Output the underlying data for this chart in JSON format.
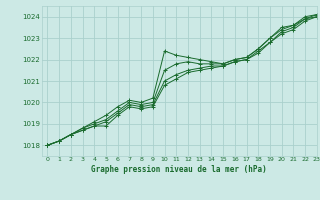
{
  "title": "Graphe pression niveau de la mer (hPa)",
  "xlim": [
    -0.5,
    23
  ],
  "ylim": [
    1017.5,
    1024.5
  ],
  "yticks": [
    1018,
    1019,
    1020,
    1021,
    1022,
    1023,
    1024
  ],
  "xticks": [
    0,
    1,
    2,
    3,
    4,
    5,
    6,
    7,
    8,
    9,
    10,
    11,
    12,
    13,
    14,
    15,
    16,
    17,
    18,
    19,
    20,
    21,
    22,
    23
  ],
  "bg_color": "#cce9e5",
  "grid_color": "#aad0cc",
  "line_color": "#1a6b2e",
  "series": [
    [
      1018.0,
      1018.2,
      1018.5,
      1018.8,
      1019.1,
      1019.4,
      1019.8,
      1020.1,
      1020.0,
      1020.2,
      1022.4,
      1022.2,
      1022.1,
      1022.0,
      1021.9,
      1021.8,
      1022.0,
      1022.1,
      1022.5,
      1023.0,
      1023.5,
      1023.6,
      1024.0,
      1024.1
    ],
    [
      1018.0,
      1018.2,
      1018.5,
      1018.8,
      1019.0,
      1019.2,
      1019.6,
      1020.0,
      1019.9,
      1020.0,
      1021.5,
      1021.8,
      1021.9,
      1021.8,
      1021.8,
      1021.8,
      1022.0,
      1022.1,
      1022.5,
      1023.0,
      1023.4,
      1023.6,
      1023.9,
      1024.1
    ],
    [
      1018.0,
      1018.2,
      1018.5,
      1018.7,
      1018.9,
      1019.1,
      1019.5,
      1019.9,
      1019.8,
      1019.9,
      1021.0,
      1021.3,
      1021.5,
      1021.6,
      1021.7,
      1021.7,
      1021.9,
      1022.0,
      1022.4,
      1022.8,
      1023.3,
      1023.5,
      1023.9,
      1024.0
    ],
    [
      1018.0,
      1018.2,
      1018.5,
      1018.7,
      1018.9,
      1018.9,
      1019.4,
      1019.8,
      1019.7,
      1019.8,
      1020.8,
      1021.1,
      1021.4,
      1021.5,
      1021.6,
      1021.7,
      1021.9,
      1022.0,
      1022.3,
      1022.8,
      1023.2,
      1023.4,
      1023.8,
      1024.0
    ]
  ],
  "figsize": [
    3.2,
    2.0
  ],
  "dpi": 100
}
